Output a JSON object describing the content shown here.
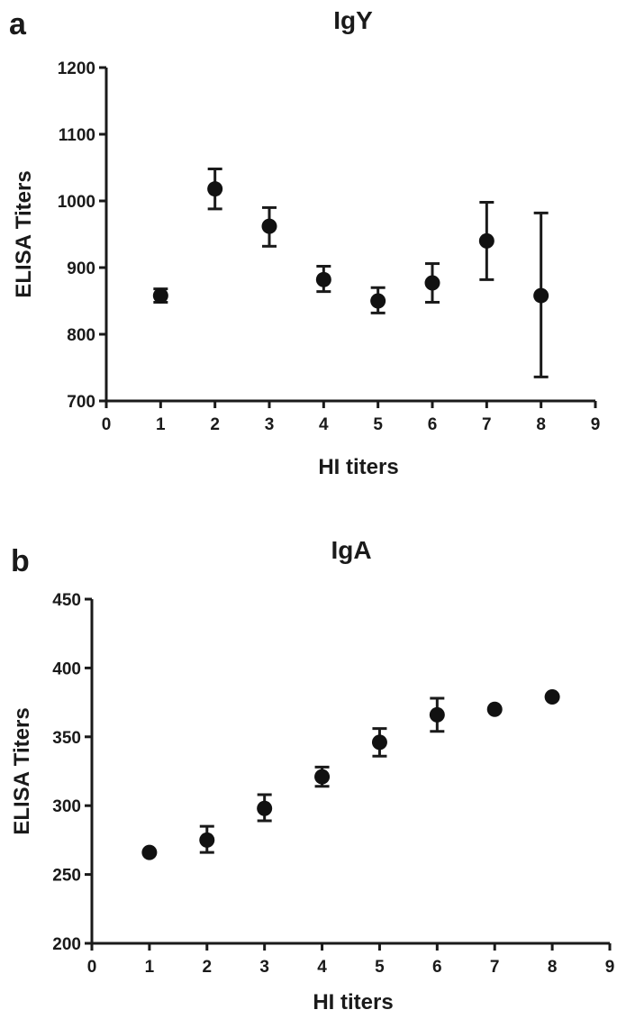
{
  "figure": {
    "panels": [
      "a",
      "b"
    ]
  },
  "chart_data": [
    {
      "type": "scatter",
      "panel": "a",
      "title": "IgY",
      "xlabel": "HI titers",
      "ylabel": "ELISA Titers",
      "xlim": [
        0,
        9
      ],
      "ylim": [
        700,
        1200
      ],
      "x_ticks": [
        0,
        1,
        2,
        3,
        4,
        5,
        6,
        7,
        8,
        9
      ],
      "y_ticks": [
        700,
        800,
        900,
        1000,
        1100,
        1200
      ],
      "grid": false,
      "legend": "none",
      "points": [
        {
          "x": 1,
          "y": 858,
          "err_low": 848,
          "err_high": 868
        },
        {
          "x": 2,
          "y": 1018,
          "err_low": 988,
          "err_high": 1048
        },
        {
          "x": 3,
          "y": 962,
          "err_low": 932,
          "err_high": 990
        },
        {
          "x": 4,
          "y": 882,
          "err_low": 864,
          "err_high": 902
        },
        {
          "x": 5,
          "y": 850,
          "err_low": 832,
          "err_high": 870
        },
        {
          "x": 6,
          "y": 877,
          "err_low": 848,
          "err_high": 906
        },
        {
          "x": 7,
          "y": 940,
          "err_low": 882,
          "err_high": 998
        },
        {
          "x": 8,
          "y": 858,
          "err_low": 736,
          "err_high": 982
        }
      ]
    },
    {
      "type": "scatter",
      "panel": "b",
      "title": "IgA",
      "xlabel": "HI titers",
      "ylabel": "ELISA Titers",
      "xlim": [
        0,
        9
      ],
      "ylim": [
        200,
        450
      ],
      "x_ticks": [
        0,
        1,
        2,
        3,
        4,
        5,
        6,
        7,
        8,
        9
      ],
      "y_ticks": [
        200,
        250,
        300,
        350,
        400,
        450
      ],
      "grid": false,
      "legend": "none",
      "points": [
        {
          "x": 1,
          "y": 266,
          "err_low": 266,
          "err_high": 266
        },
        {
          "x": 2,
          "y": 275,
          "err_low": 266,
          "err_high": 285
        },
        {
          "x": 3,
          "y": 298,
          "err_low": 289,
          "err_high": 308
        },
        {
          "x": 4,
          "y": 321,
          "err_low": 314,
          "err_high": 328
        },
        {
          "x": 5,
          "y": 346,
          "err_low": 336,
          "err_high": 356
        },
        {
          "x": 6,
          "y": 366,
          "err_low": 354,
          "err_high": 378
        },
        {
          "x": 7,
          "y": 370,
          "err_low": 370,
          "err_high": 370
        },
        {
          "x": 8,
          "y": 379,
          "err_low": 379,
          "err_high": 379
        }
      ]
    }
  ]
}
